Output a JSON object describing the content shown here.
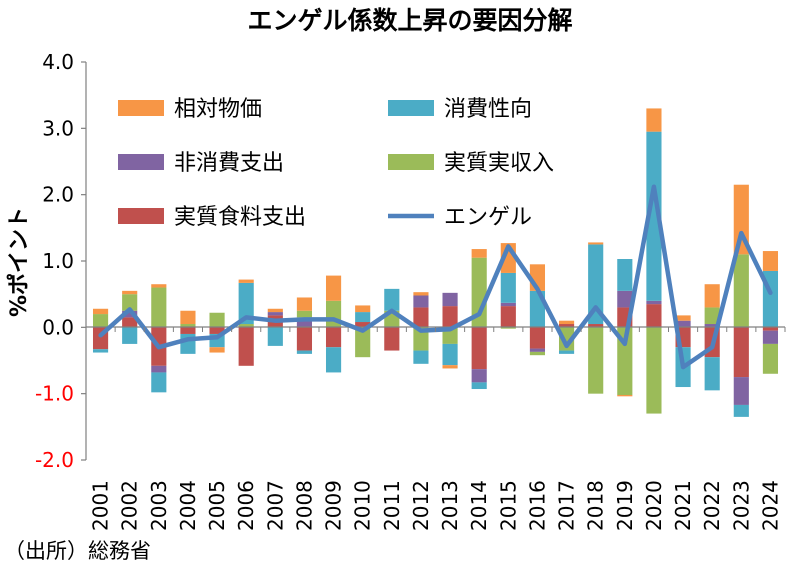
{
  "chart_data": {
    "type": "bar",
    "title": "エンゲル係数上昇の要因分解",
    "xlabel": "",
    "ylabel": "%ポイント",
    "ylim": [
      -2.0,
      4.0
    ],
    "yticks": [
      "4.0",
      "3.0",
      "2.0",
      "1.0",
      "0.0",
      "-1.0",
      "-2.0"
    ],
    "ytick_values": [
      4.0,
      3.0,
      2.0,
      1.0,
      0.0,
      -1.0,
      -2.0
    ],
    "categories": [
      "2001",
      "2002",
      "2003",
      "2004",
      "2005",
      "2006",
      "2007",
      "2008",
      "2009",
      "2010",
      "2011",
      "2012",
      "2013",
      "2014",
      "2015",
      "2016",
      "2017",
      "2018",
      "2019",
      "2020",
      "2021",
      "2022",
      "2023",
      "2024"
    ],
    "series": [
      {
        "name": "実質食料支出",
        "color": "#c0504d",
        "kind": "bar",
        "values": [
          -0.33,
          0.15,
          -0.58,
          -0.1,
          -0.1,
          -0.58,
          0.18,
          -0.35,
          -0.3,
          0.08,
          -0.35,
          0.3,
          0.32,
          -0.63,
          0.32,
          -0.32,
          0.05,
          0.05,
          0.3,
          0.35,
          -0.3,
          -0.45,
          -0.75,
          -0.05
        ]
      },
      {
        "name": "非消費支出",
        "color": "#8064a2",
        "kind": "bar",
        "values": [
          0.0,
          0.1,
          -0.1,
          0.0,
          0.0,
          0.0,
          0.05,
          0.15,
          0.0,
          0.0,
          0.0,
          0.18,
          0.2,
          -0.2,
          0.05,
          -0.05,
          0.0,
          0.0,
          0.25,
          0.05,
          0.1,
          0.05,
          -0.42,
          -0.2
        ]
      },
      {
        "name": "実質実収入",
        "color": "#9bbb59",
        "kind": "bar",
        "values": [
          0.2,
          0.25,
          0.6,
          0.05,
          0.22,
          0.05,
          0.0,
          0.1,
          0.4,
          -0.45,
          0.25,
          -0.35,
          -0.25,
          1.05,
          -0.02,
          -0.05,
          -0.35,
          -1.0,
          -1.02,
          -1.3,
          0.0,
          0.25,
          1.1,
          -0.45
        ]
      },
      {
        "name": "消費性向",
        "color": "#4bacc6",
        "kind": "bar",
        "values": [
          -0.05,
          -0.25,
          -0.3,
          -0.3,
          -0.2,
          0.62,
          -0.28,
          -0.05,
          -0.38,
          0.15,
          0.33,
          -0.2,
          -0.32,
          -0.1,
          0.45,
          0.55,
          -0.05,
          1.2,
          0.48,
          2.55,
          -0.6,
          -0.5,
          -0.18,
          0.85
        ]
      },
      {
        "name": "相対物価",
        "color": "#f79646",
        "kind": "bar",
        "values": [
          0.08,
          0.05,
          0.05,
          0.2,
          -0.08,
          0.05,
          0.05,
          0.2,
          0.38,
          0.1,
          0.0,
          0.05,
          -0.05,
          0.13,
          0.45,
          0.4,
          0.05,
          0.03,
          -0.02,
          0.35,
          0.08,
          0.35,
          1.05,
          0.3
        ]
      },
      {
        "name": "エンゲル",
        "color": "#4f81bd",
        "kind": "line",
        "values": [
          -0.12,
          0.27,
          -0.3,
          -0.18,
          -0.15,
          0.15,
          0.1,
          0.12,
          0.12,
          -0.05,
          0.25,
          -0.05,
          -0.03,
          0.2,
          1.22,
          0.58,
          -0.28,
          0.3,
          -0.25,
          2.12,
          -0.6,
          -0.3,
          1.42,
          0.52
        ]
      }
    ],
    "legend": {
      "placement": "top-left inside plot, two columns",
      "order": [
        "相対物価",
        "消費性向",
        "非消費支出",
        "実質実収入",
        "実質食料支出",
        "エンゲル"
      ]
    },
    "grid": false,
    "negative_tick_color": "#ff0000"
  },
  "source_note": "（出所）総務省"
}
